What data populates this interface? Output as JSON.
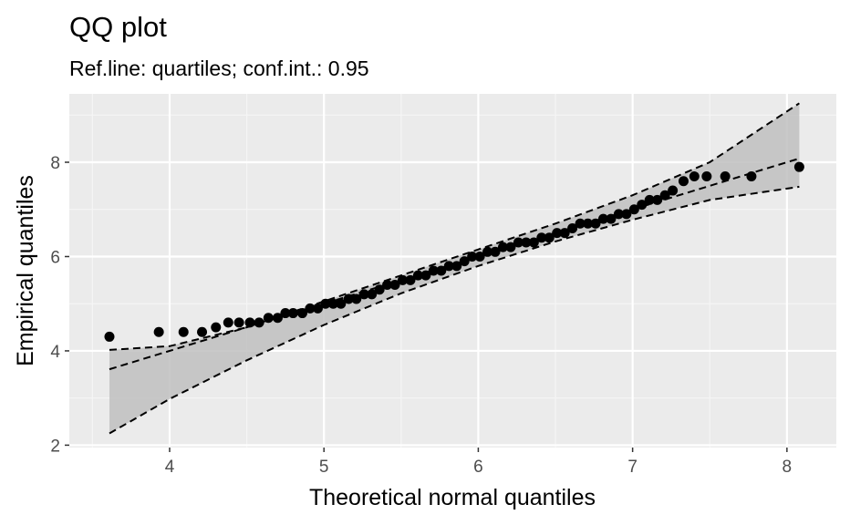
{
  "chart_data": {
    "type": "scatter",
    "title": "QQ plot",
    "subtitle": "Ref.line: quartiles; conf.int.: 0.95",
    "xlabel": "Theoretical normal quantiles",
    "ylabel": "Empirical quantiles",
    "xlim": [
      3.35,
      8.32
    ],
    "ylim": [
      1.95,
      9.45
    ],
    "xticks": [
      4,
      5,
      6,
      7,
      8
    ],
    "yticks": [
      2,
      4,
      6,
      8
    ],
    "grid": true,
    "ref_line": {
      "slope": 1.0,
      "intercept": 0.0,
      "style": "dashed"
    },
    "conf_band": {
      "x": [
        3.61,
        4.0,
        4.5,
        5.0,
        5.5,
        6.0,
        6.5,
        7.0,
        7.5,
        8.08
      ],
      "lower": [
        2.25,
        2.98,
        3.8,
        4.55,
        5.22,
        5.8,
        6.32,
        6.78,
        7.2,
        7.48
      ],
      "upper": [
        4.02,
        4.1,
        4.5,
        5.05,
        5.6,
        6.15,
        6.7,
        7.3,
        8.0,
        9.25
      ]
    },
    "points": {
      "x": [
        3.61,
        3.93,
        4.09,
        4.21,
        4.3,
        4.38,
        4.45,
        4.52,
        4.58,
        4.64,
        4.7,
        4.75,
        4.8,
        4.86,
        4.91,
        4.96,
        5.01,
        5.06,
        5.11,
        5.16,
        5.21,
        5.26,
        5.31,
        5.36,
        5.41,
        5.46,
        5.51,
        5.56,
        5.61,
        5.66,
        5.71,
        5.76,
        5.81,
        5.86,
        5.91,
        5.96,
        6.01,
        6.06,
        6.11,
        6.16,
        6.21,
        6.26,
        6.31,
        6.36,
        6.41,
        6.46,
        6.51,
        6.56,
        6.61,
        6.66,
        6.71,
        6.76,
        6.81,
        6.86,
        6.91,
        6.96,
        7.01,
        7.06,
        7.11,
        7.16,
        7.21,
        7.26,
        7.33,
        7.4,
        7.48,
        7.6,
        7.77,
        8.08
      ],
      "y": [
        4.3,
        4.4,
        4.4,
        4.4,
        4.5,
        4.6,
        4.6,
        4.6,
        4.6,
        4.7,
        4.7,
        4.8,
        4.8,
        4.8,
        4.9,
        4.9,
        5.0,
        5.0,
        5.0,
        5.1,
        5.1,
        5.2,
        5.2,
        5.3,
        5.4,
        5.4,
        5.5,
        5.5,
        5.6,
        5.6,
        5.7,
        5.7,
        5.8,
        5.8,
        5.9,
        6.0,
        6.0,
        6.1,
        6.1,
        6.2,
        6.2,
        6.3,
        6.3,
        6.3,
        6.4,
        6.4,
        6.5,
        6.5,
        6.6,
        6.7,
        6.7,
        6.7,
        6.8,
        6.8,
        6.9,
        6.9,
        7.0,
        7.1,
        7.2,
        7.2,
        7.3,
        7.4,
        7.6,
        7.7,
        7.7,
        7.7,
        7.7,
        7.9
      ]
    }
  }
}
